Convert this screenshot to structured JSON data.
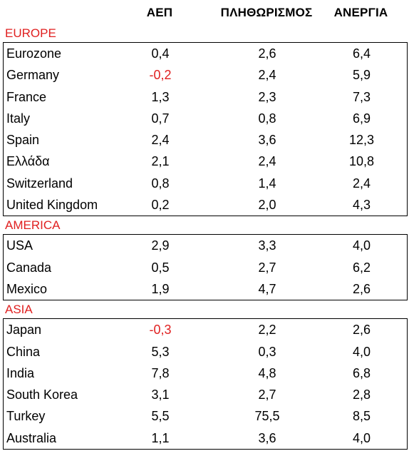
{
  "accent_color": "#e02020",
  "negative_color": "#e02020",
  "headers": {
    "gdp": "ΑΕΠ",
    "population": "ΠΛΗΘΩΡΙΣΜΟΣ",
    "unemployment": "ΑΝΕΡΓΙΑ"
  },
  "sections": [
    {
      "label": "EUROPE",
      "rows": [
        {
          "name": "Eurozone",
          "gdp": "0,4",
          "population": "2,6",
          "unemployment": "6,4"
        },
        {
          "name": "Germany",
          "gdp": "-0,2",
          "population": "2,4",
          "unemployment": "5,9"
        },
        {
          "name": "France",
          "gdp": "1,3",
          "population": "2,3",
          "unemployment": "7,3"
        },
        {
          "name": "Italy",
          "gdp": "0,7",
          "population": "0,8",
          "unemployment": "6,9"
        },
        {
          "name": "Spain",
          "gdp": "2,4",
          "population": "3,6",
          "unemployment": "12,3"
        },
        {
          "name": "Ελλάδα",
          "gdp": "2,1",
          "population": "2,4",
          "unemployment": "10,8"
        },
        {
          "name": "Switzerland",
          "gdp": "0,8",
          "population": "1,4",
          "unemployment": "2,4"
        },
        {
          "name": "United Kingdom",
          "gdp": "0,2",
          "population": "2,0",
          "unemployment": "4,3"
        }
      ]
    },
    {
      "label": "AMERICA",
      "rows": [
        {
          "name": "USA",
          "gdp": "2,9",
          "population": "3,3",
          "unemployment": "4,0"
        },
        {
          "name": "Canada",
          "gdp": "0,5",
          "population": "2,7",
          "unemployment": "6,2"
        },
        {
          "name": "Mexico",
          "gdp": "1,9",
          "population": "4,7",
          "unemployment": "2,6"
        }
      ]
    },
    {
      "label": "ASIA",
      "rows": [
        {
          "name": "Japan",
          "gdp": "-0,3",
          "population": "2,2",
          "unemployment": "2,6"
        },
        {
          "name": "China",
          "gdp": "5,3",
          "population": "0,3",
          "unemployment": "4,0"
        },
        {
          "name": "India",
          "gdp": "7,8",
          "population": "4,8",
          "unemployment": "6,8"
        },
        {
          "name": "South Korea",
          "gdp": "3,1",
          "population": "2,7",
          "unemployment": "2,8"
        },
        {
          "name": "Turkey",
          "gdp": "5,5",
          "population": "75,5",
          "unemployment": "8,5"
        },
        {
          "name": "Australia",
          "gdp": "1,1",
          "population": "3,6",
          "unemployment": "4,0"
        }
      ]
    }
  ]
}
